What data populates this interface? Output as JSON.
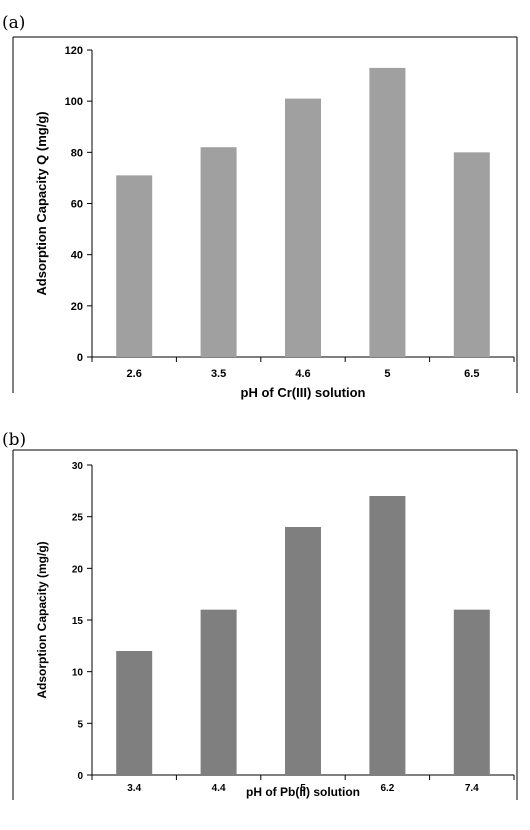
{
  "panels": {
    "a_label": "(a)",
    "b_label": "(b)"
  },
  "chart_data": [
    {
      "type": "bar",
      "panel": "a",
      "categories": [
        "2.6",
        "3.5",
        "4.6",
        "5",
        "6.5"
      ],
      "values": [
        71,
        82,
        101,
        113,
        80
      ],
      "title": "",
      "xlabel": "pH of Cr(III) solution",
      "ylabel": "Adsorption Capacity Q (mg/g)",
      "ylim": [
        0,
        120
      ],
      "yticks": [
        0,
        20,
        40,
        60,
        80,
        100,
        120
      ],
      "bar_color": "#a0a0a0",
      "grid": false,
      "legend": "none"
    },
    {
      "type": "bar",
      "panel": "b",
      "categories": [
        "3.4",
        "4.4",
        "5",
        "6.2",
        "7.4"
      ],
      "values": [
        12,
        16,
        24,
        27,
        16
      ],
      "title": "",
      "xlabel": "pH of Pb(II) solution",
      "ylabel": "Adsorption Capacity (mg/g)",
      "ylim": [
        0,
        30
      ],
      "yticks": [
        0,
        5,
        10,
        15,
        20,
        25,
        30
      ],
      "bar_color": "#7f7f7f",
      "grid": false,
      "legend": "none"
    }
  ]
}
